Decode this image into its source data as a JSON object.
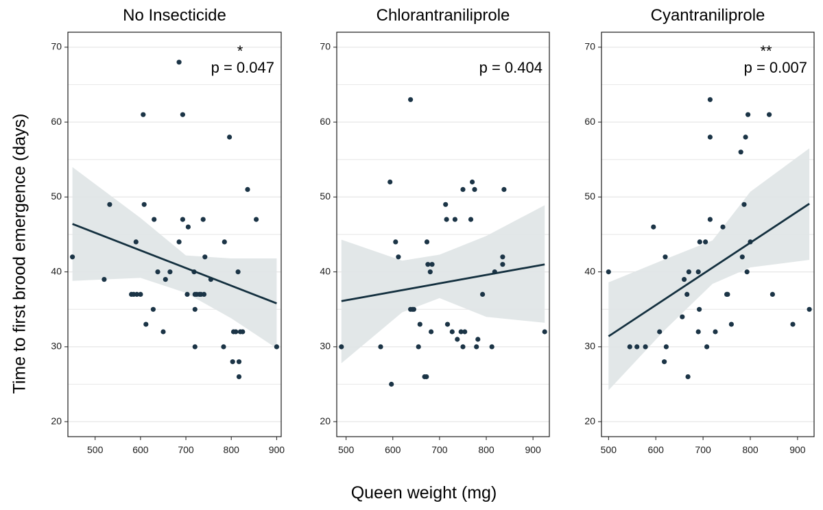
{
  "figure": {
    "ylabel": "Time to first brood emergence (days)",
    "xlabel": "Queen weight (mg)"
  },
  "colors": {
    "point": "#1b3446",
    "line": "#14303f",
    "ribbon": "#dfe4e6",
    "grid": "#e6e6e6",
    "frame": "#1a1a1a"
  },
  "chart_data": [
    {
      "type": "scatter",
      "title": "No Insecticide",
      "p_label": "p = 0.047",
      "significance": "*",
      "xlim": [
        440,
        910
      ],
      "ylim": [
        18,
        72
      ],
      "xticks": [
        500,
        600,
        700,
        800,
        900
      ],
      "yticks": [
        20,
        30,
        40,
        50,
        60,
        70
      ],
      "points": [
        [
          450,
          42
        ],
        [
          520,
          39
        ],
        [
          532,
          49
        ],
        [
          580,
          37
        ],
        [
          585,
          37
        ],
        [
          590,
          44
        ],
        [
          592,
          37
        ],
        [
          600,
          37
        ],
        [
          606,
          61
        ],
        [
          608,
          49
        ],
        [
          612,
          33
        ],
        [
          628,
          35
        ],
        [
          630,
          47
        ],
        [
          638,
          40
        ],
        [
          650,
          32
        ],
        [
          655,
          39
        ],
        [
          665,
          40
        ],
        [
          685,
          68
        ],
        [
          685,
          44
        ],
        [
          693,
          61
        ],
        [
          693,
          47
        ],
        [
          703,
          37
        ],
        [
          705,
          46
        ],
        [
          718,
          40
        ],
        [
          720,
          37
        ],
        [
          720,
          35
        ],
        [
          720,
          30
        ],
        [
          724,
          37
        ],
        [
          730,
          37
        ],
        [
          733,
          37
        ],
        [
          738,
          47
        ],
        [
          740,
          37
        ],
        [
          742,
          42
        ],
        [
          755,
          39
        ],
        [
          783,
          30
        ],
        [
          785,
          44
        ],
        [
          796,
          58
        ],
        [
          803,
          28
        ],
        [
          805,
          32
        ],
        [
          810,
          32
        ],
        [
          815,
          40
        ],
        [
          817,
          28
        ],
        [
          817,
          26
        ],
        [
          820,
          32
        ],
        [
          825,
          32
        ],
        [
          836,
          51
        ],
        [
          855,
          47
        ],
        [
          900,
          30
        ]
      ],
      "fit": {
        "x": [
          450,
          900
        ],
        "y": [
          46.4,
          35.8
        ]
      },
      "ci": {
        "x": [
          450,
          600,
          700,
          800,
          900
        ],
        "lower": [
          38.8,
          39.2,
          37.2,
          33.8,
          29.8
        ],
        "upper": [
          54.0,
          47.2,
          42.2,
          41.8,
          41.8
        ]
      }
    },
    {
      "type": "scatter",
      "title": "Chlorantraniliprole",
      "p_label": "p = 0.404",
      "significance": "",
      "xlim": [
        480,
        935
      ],
      "ylim": [
        18,
        72
      ],
      "xticks": [
        500,
        600,
        700,
        800,
        900
      ],
      "yticks": [
        20,
        30,
        40,
        50,
        60,
        70
      ],
      "points": [
        [
          490,
          30
        ],
        [
          574,
          30
        ],
        [
          594,
          52
        ],
        [
          597,
          25
        ],
        [
          606,
          44
        ],
        [
          612,
          42
        ],
        [
          638,
          63
        ],
        [
          638,
          35
        ],
        [
          642,
          35
        ],
        [
          645,
          35
        ],
        [
          655,
          30
        ],
        [
          658,
          33
        ],
        [
          668,
          26
        ],
        [
          672,
          26
        ],
        [
          673,
          44
        ],
        [
          675,
          41
        ],
        [
          680,
          40
        ],
        [
          682,
          32
        ],
        [
          684,
          41
        ],
        [
          713,
          49
        ],
        [
          715,
          47
        ],
        [
          717,
          33
        ],
        [
          727,
          32
        ],
        [
          733,
          47
        ],
        [
          738,
          31
        ],
        [
          746,
          32
        ],
        [
          750,
          30
        ],
        [
          750,
          51
        ],
        [
          754,
          32
        ],
        [
          767,
          47
        ],
        [
          770,
          52
        ],
        [
          775,
          51
        ],
        [
          779,
          30
        ],
        [
          782,
          31
        ],
        [
          792,
          37
        ],
        [
          812,
          30
        ],
        [
          818,
          40
        ],
        [
          835,
          41
        ],
        [
          835,
          42
        ],
        [
          838,
          51
        ],
        [
          925,
          32
        ]
      ],
      "fit": {
        "x": [
          490,
          925
        ],
        "y": [
          36.1,
          41.0
        ]
      },
      "ci": {
        "x": [
          490,
          620,
          700,
          800,
          925
        ],
        "lower": [
          27.8,
          34.6,
          36.5,
          34.0,
          33.2
        ],
        "upper": [
          44.3,
          41.5,
          42.3,
          44.8,
          48.9
        ]
      }
    },
    {
      "type": "scatter",
      "title": "Cyantraniliprole",
      "p_label": "p = 0.007",
      "significance": "**",
      "xlim": [
        485,
        935
      ],
      "ylim": [
        18,
        72
      ],
      "xticks": [
        500,
        600,
        700,
        800,
        900
      ],
      "yticks": [
        20,
        30,
        40,
        50,
        60,
        70
      ],
      "points": [
        [
          500,
          40
        ],
        [
          545,
          30
        ],
        [
          560,
          30
        ],
        [
          578,
          30
        ],
        [
          595,
          46
        ],
        [
          608,
          32
        ],
        [
          618,
          28
        ],
        [
          620,
          42
        ],
        [
          622,
          30
        ],
        [
          656,
          34
        ],
        [
          660,
          39
        ],
        [
          666,
          37
        ],
        [
          668,
          26
        ],
        [
          670,
          40
        ],
        [
          690,
          40
        ],
        [
          690,
          32
        ],
        [
          692,
          35
        ],
        [
          693,
          44
        ],
        [
          705,
          44
        ],
        [
          708,
          30
        ],
        [
          715,
          63
        ],
        [
          715,
          58
        ],
        [
          715,
          47
        ],
        [
          726,
          32
        ],
        [
          742,
          46
        ],
        [
          750,
          37
        ],
        [
          752,
          37
        ],
        [
          760,
          33
        ],
        [
          780,
          56
        ],
        [
          783,
          42
        ],
        [
          787,
          49
        ],
        [
          790,
          58
        ],
        [
          795,
          61
        ],
        [
          793,
          40
        ],
        [
          800,
          44
        ],
        [
          840,
          61
        ],
        [
          847,
          37
        ],
        [
          890,
          33
        ],
        [
          925,
          35
        ]
      ],
      "fit": {
        "x": [
          500,
          925
        ],
        "y": [
          31.4,
          49.1
        ]
      },
      "ci": {
        "x": [
          500,
          620,
          720,
          800,
          925
        ],
        "lower": [
          24.2,
          32.3,
          38.4,
          40.6,
          41.6
        ],
        "upper": [
          38.6,
          41.7,
          44.2,
          50.7,
          56.5
        ]
      }
    }
  ]
}
